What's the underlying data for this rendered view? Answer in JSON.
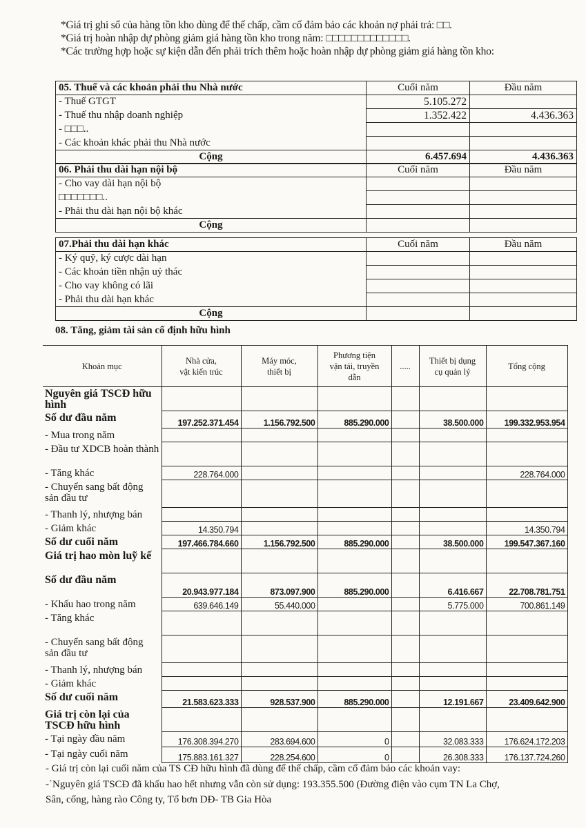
{
  "notes": [
    "*Giá trị ghi sổ của hàng tồn kho dùng để thế chấp, cầm cố đảm bảo các khoản nợ phải trả: □□.",
    "*Giá trị hoàn nhập dự phòng giảm giá hàng tồn kho trong năm: □□□□□□□□□□□□□.",
    "*Các trường hợp hoặc sự kiện dẫn đến phải trích thêm hoặc hoàn nhập dự phòng giảm giá hàng tồn kho:"
  ],
  "sections": [
    {
      "title": "05. Thuế và các khoản phải thu Nhà nước",
      "col1": "Cuối năm",
      "col2": "Đầu năm",
      "rows": [
        [
          "- Thuế GTGT",
          "5.105.272",
          ""
        ],
        [
          "-  Thuế thu nhập doanh nghiệp",
          "1.352.422",
          "4.436.363"
        ],
        [
          "- □□□..",
          "",
          ""
        ],
        [
          "- Các khoản khác phải thu Nhà nước",
          "",
          ""
        ]
      ],
      "total": {
        "label": "Cộng",
        "c1": "6.457.694",
        "c2": "4.436.363"
      }
    },
    {
      "title": "06. Phải thu dài hạn nội bộ",
      "col1": "Cuối năm",
      "col2": "Đầu năm",
      "rows": [
        [
          "- Cho vay dài hạn nội bộ",
          "",
          ""
        ],
        [
          "□□□□□□□..",
          "",
          ""
        ],
        [
          "- Phải thu dài hạn nội bộ khác",
          "",
          ""
        ]
      ],
      "total": {
        "label": "Cộng",
        "c1": "",
        "c2": ""
      }
    },
    {
      "title": "07.Phải thu dài hạn khác",
      "col1": "Cuối năm",
      "col2": "Đầu năm",
      "rows": [
        [
          "- Ký quỹ, ký cược dài hạn",
          "",
          ""
        ],
        [
          "- Các khoản tiền nhận uỷ thác",
          "",
          ""
        ],
        [
          "- Cho vay không có lãi",
          "",
          ""
        ],
        [
          "- Phải thu dài hạn khác",
          "",
          ""
        ]
      ],
      "total": {
        "label": "Cộng",
        "c1": "",
        "c2": ""
      }
    }
  ],
  "fixed_assets": {
    "title": "08. Tăng, giảm tài sản cố định hữu hình",
    "headers": [
      "Khoản mục",
      "Nhà cửa,\nvật kiến trúc",
      "Máy móc,\nthiết bị",
      "Phương tiện\nvận tải, truyền\ndẫn",
      ".....",
      "Thiết bị dụng\ncụ quản lý",
      "Tổng cộng"
    ],
    "rows": [
      {
        "label": "Nguyên giá TSCĐ hữu hình",
        "bold": true,
        "values": [
          "",
          "",
          "",
          "",
          "",
          ""
        ]
      },
      {
        "label": "Số dư đầu năm",
        "bold": true,
        "values": [
          "197.252.371.454",
          "1.156.792.500",
          "885.290.000",
          "",
          "38.500.000",
          "199.332.953.954"
        ]
      },
      {
        "label": "- Mua trong năm",
        "values": [
          "",
          "",
          "",
          "",
          "",
          ""
        ]
      },
      {
        "label": "- Đầu tư XDCB hoàn thành",
        "values": [
          "",
          "",
          "",
          "",
          "",
          ""
        ]
      },
      {
        "label": "- Tăng khác",
        "values": [
          "228.764.000",
          "",
          "",
          "",
          "",
          "228.764.000"
        ]
      },
      {
        "label": "- Chuyển sang bất động sản đầu tư",
        "values": [
          "",
          "",
          "",
          "",
          "",
          ""
        ]
      },
      {
        "label": "- Thanh lý, nhượng bán",
        "values": [
          "",
          "",
          "",
          "",
          "",
          ""
        ]
      },
      {
        "label": "- Giảm khác",
        "values": [
          "14.350.794",
          "",
          "",
          "",
          "",
          "14.350.794"
        ]
      },
      {
        "label": "Số dư cuối năm",
        "bold": true,
        "values": [
          "197.466.784.660",
          "1.156.792.500",
          "885.290.000",
          "",
          "38.500.000",
          "199.547.367.160"
        ]
      },
      {
        "label": "Giá trị hao mòn luỹ kế",
        "bold": true,
        "values": [
          "",
          "",
          "",
          "",
          "",
          ""
        ]
      },
      {
        "label": "Số dư đầu năm",
        "bold": true,
        "values": [
          "20.943.977.184",
          "873.097.900",
          "885.290.000",
          "",
          "6.416.667",
          "22.708.781.751"
        ]
      },
      {
        "label": "- Khấu hao trong năm",
        "values": [
          "639.646.149",
          "55.440.000",
          "",
          "",
          "5.775.000",
          "700.861.149"
        ]
      },
      {
        "label": "- Tăng khác",
        "values": [
          "",
          "",
          "",
          "",
          "",
          ""
        ]
      },
      {
        "label": "- Chuyển sang bất động sản đầu tư",
        "values": [
          "",
          "",
          "",
          "",
          "",
          ""
        ]
      },
      {
        "label": "- Thanh lý, nhượng bán",
        "values": [
          "",
          "",
          "",
          "",
          "",
          ""
        ]
      },
      {
        "label": "- Giảm khác",
        "values": [
          "",
          "",
          "",
          "",
          "",
          ""
        ]
      },
      {
        "label": "Số dư cuối năm",
        "bold": true,
        "values": [
          "21.583.623.333",
          "928.537.900",
          "885.290.000",
          "",
          "12.191.667",
          "23.409.642.900"
        ]
      },
      {
        "label": "Giá trị còn lại của TSCĐ hữu hình",
        "bold": true,
        "values": [
          "",
          "",
          "",
          "",
          "",
          ""
        ]
      },
      {
        "label": "- Tại ngày đầu năm",
        "values": [
          "176.308.394.270",
          "283.694.600",
          "0",
          "",
          "32.083.333",
          "176.624.172.203"
        ]
      },
      {
        "label": "- Tại ngày cuối năm",
        "values": [
          "175.883.161.327",
          "228.254.600",
          "0",
          "",
          "26.308.333",
          "176.137.724.260"
        ]
      }
    ],
    "footnotes": [
      "- Giá trị còn lại cuối năm của TS CĐ hữu hình đã dùng để thế chấp, cầm cố đảm bảo các khoản vay:",
      "-˙Nguyên giá TSCĐ đã khấu hao hết nhưng vẫn còn sử dụng: 193.355.500 (Đường điện vào cụm TN La Chợ,",
      "Sân, cống, hàng rào Công ty, Tổ bơn DĐ- TB Gia Hòa"
    ]
  }
}
